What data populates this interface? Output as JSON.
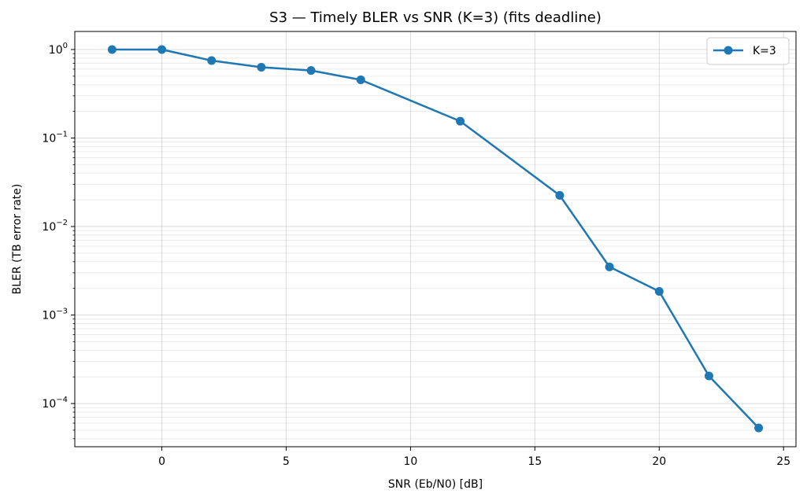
{
  "chart_data": {
    "type": "line",
    "title": "S3 — Timely BLER vs SNR (K=3) (fits deadline)",
    "xlabel": "SNR (Eb/N0) [dB]",
    "ylabel": "BLER (TB error rate)",
    "xlim": [
      -3.5,
      25.5
    ],
    "ylim": [
      3.25e-05,
      1.6
    ],
    "yscale": "log",
    "grid": true,
    "legend": "top-right",
    "xticks": [
      0,
      5,
      10,
      15,
      20,
      25
    ],
    "xtick_labels": [
      "0",
      "5",
      "10",
      "15",
      "20",
      "25"
    ],
    "yticks": [
      1,
      0.1,
      0.01,
      0.001,
      0.0001
    ],
    "ytick_labels": [
      {
        "base": "10",
        "exp": "0"
      },
      {
        "base": "10",
        "exp": "−1"
      },
      {
        "base": "10",
        "exp": "−2"
      },
      {
        "base": "10",
        "exp": "−3"
      },
      {
        "base": "10",
        "exp": "−4"
      }
    ],
    "series": [
      {
        "name": "K=3",
        "color": "#1f77b4",
        "marker": "circle",
        "x": [
          -2,
          0,
          2,
          4,
          6,
          8,
          12,
          16,
          18,
          20,
          22,
          24
        ],
        "y": [
          1.0,
          1.0,
          0.75,
          0.63,
          0.58,
          0.455,
          0.155,
          0.0225,
          0.0035,
          0.00185,
          0.000205,
          5.3e-05
        ]
      }
    ]
  }
}
